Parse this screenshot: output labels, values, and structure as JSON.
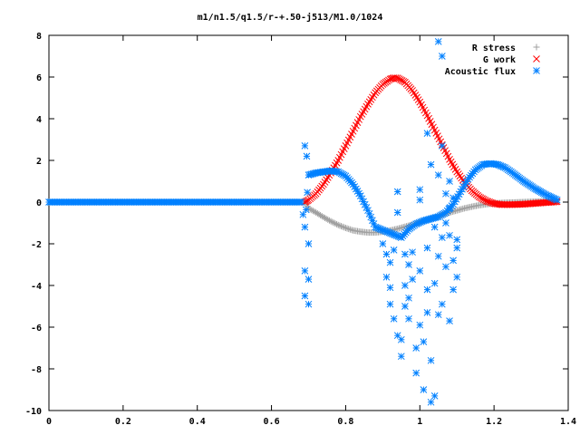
{
  "chart_data": {
    "type": "scatter",
    "title": "m1/n1.5/q1.5/r-+.50-j513/M1.0/1024",
    "xlabel": "",
    "ylabel": "",
    "xlim": [
      0,
      1.4
    ],
    "ylim": [
      -10,
      8
    ],
    "grid": false,
    "legend_position": "top-right",
    "x_ticks": [
      "0",
      "0.2",
      "0.4",
      "0.6",
      "0.8",
      "1",
      "1.2",
      "1.4"
    ],
    "y_ticks": [
      "8",
      "6",
      "4",
      "2",
      "0",
      "-2",
      "-4",
      "-6",
      "-8",
      "-10"
    ],
    "series": [
      {
        "name": "R stress",
        "marker": "plus",
        "color": "#a0a0a0",
        "points": [
          [
            0,
            0
          ],
          [
            0.1,
            0
          ],
          [
            0.2,
            0
          ],
          [
            0.3,
            0
          ],
          [
            0.4,
            0
          ],
          [
            0.5,
            0
          ],
          [
            0.6,
            0
          ],
          [
            0.69,
            0
          ],
          [
            0.7,
            -0.3
          ],
          [
            0.72,
            -0.5
          ],
          [
            0.74,
            -0.72
          ],
          [
            0.76,
            -0.92
          ],
          [
            0.78,
            -1.1
          ],
          [
            0.8,
            -1.24
          ],
          [
            0.82,
            -1.36
          ],
          [
            0.84,
            -1.42
          ],
          [
            0.86,
            -1.46
          ],
          [
            0.88,
            -1.46
          ],
          [
            0.9,
            -1.42
          ],
          [
            0.92,
            -1.36
          ],
          [
            0.94,
            -1.28
          ],
          [
            0.96,
            -1.18
          ],
          [
            0.98,
            -1.08
          ],
          [
            1.0,
            -0.96
          ],
          [
            1.02,
            -0.84
          ],
          [
            1.04,
            -0.74
          ],
          [
            1.06,
            -0.62
          ],
          [
            1.08,
            -0.5
          ],
          [
            1.1,
            -0.4
          ],
          [
            1.12,
            -0.3
          ],
          [
            1.14,
            -0.22
          ],
          [
            1.16,
            -0.15
          ],
          [
            1.18,
            -0.1
          ],
          [
            1.2,
            -0.06
          ],
          [
            1.22,
            -0.04
          ],
          [
            1.25,
            -0.02
          ],
          [
            1.28,
            0
          ],
          [
            1.31,
            0.02
          ],
          [
            1.34,
            0.04
          ],
          [
            1.37,
            0.06
          ]
        ]
      },
      {
        "name": "G work",
        "marker": "cross",
        "color": "#ff0000",
        "points": [
          [
            0.69,
            0
          ],
          [
            0.7,
            0.1
          ],
          [
            0.72,
            0.4
          ],
          [
            0.74,
            0.85
          ],
          [
            0.76,
            1.4
          ],
          [
            0.78,
            2.0
          ],
          [
            0.8,
            2.7
          ],
          [
            0.82,
            3.4
          ],
          [
            0.84,
            4.1
          ],
          [
            0.86,
            4.7
          ],
          [
            0.88,
            5.25
          ],
          [
            0.9,
            5.65
          ],
          [
            0.92,
            5.9
          ],
          [
            0.93,
            5.96
          ],
          [
            0.94,
            5.95
          ],
          [
            0.96,
            5.75
          ],
          [
            0.98,
            5.35
          ],
          [
            1.0,
            4.8
          ],
          [
            1.02,
            4.15
          ],
          [
            1.04,
            3.45
          ],
          [
            1.06,
            2.75
          ],
          [
            1.08,
            2.05
          ],
          [
            1.1,
            1.45
          ],
          [
            1.12,
            0.95
          ],
          [
            1.14,
            0.55
          ],
          [
            1.16,
            0.25
          ],
          [
            1.18,
            0.05
          ],
          [
            1.2,
            -0.07
          ],
          [
            1.22,
            -0.12
          ],
          [
            1.25,
            -0.12
          ],
          [
            1.28,
            -0.1
          ],
          [
            1.31,
            -0.06
          ],
          [
            1.34,
            -0.02
          ],
          [
            1.37,
            0.02
          ]
        ]
      },
      {
        "name": "Acoustic flux",
        "marker": "star",
        "color": "#0080ff",
        "points": [
          [
            0,
            0
          ],
          [
            0.1,
            0
          ],
          [
            0.2,
            0
          ],
          [
            0.3,
            0
          ],
          [
            0.4,
            0
          ],
          [
            0.5,
            0
          ],
          [
            0.6,
            0
          ],
          [
            0.68,
            0
          ],
          [
            0.69,
            2.7
          ],
          [
            0.69,
            -1.2
          ],
          [
            0.69,
            -3.3
          ],
          [
            0.69,
            -4.5
          ],
          [
            0.695,
            2.2
          ],
          [
            0.7,
            -2.0
          ],
          [
            0.7,
            -3.7
          ],
          [
            0.7,
            -4.9
          ],
          [
            0.7,
            1.3
          ],
          [
            0.72,
            1.4
          ],
          [
            0.74,
            1.45
          ],
          [
            0.76,
            1.5
          ],
          [
            0.78,
            1.45
          ],
          [
            0.8,
            1.25
          ],
          [
            0.82,
            0.85
          ],
          [
            0.84,
            0.3
          ],
          [
            0.86,
            -0.4
          ],
          [
            0.88,
            -1.2
          ],
          [
            0.9,
            -2.0
          ],
          [
            0.91,
            -2.5
          ],
          [
            0.92,
            -2.9
          ],
          [
            0.93,
            -2.3
          ],
          [
            0.95,
            -1.7
          ],
          [
            0.97,
            -1.3
          ],
          [
            0.99,
            -1.05
          ],
          [
            1.01,
            -0.9
          ],
          [
            1.03,
            -0.8
          ],
          [
            1.05,
            -0.7
          ],
          [
            1.07,
            -0.5
          ],
          [
            1.09,
            -0.1
          ],
          [
            1.11,
            0.5
          ],
          [
            1.13,
            1.1
          ],
          [
            1.15,
            1.55
          ],
          [
            1.17,
            1.8
          ],
          [
            1.19,
            1.85
          ],
          [
            1.21,
            1.8
          ],
          [
            1.23,
            1.65
          ],
          [
            1.25,
            1.4
          ],
          [
            1.28,
            1.0
          ],
          [
            1.31,
            0.65
          ],
          [
            1.34,
            0.35
          ],
          [
            1.37,
            0.1
          ],
          [
            0.91,
            -3.6
          ],
          [
            0.92,
            -4.1
          ],
          [
            0.92,
            -4.9
          ],
          [
            0.93,
            -5.6
          ],
          [
            0.94,
            0.5
          ],
          [
            0.94,
            -0.5
          ],
          [
            0.94,
            -6.4
          ],
          [
            0.95,
            -6.6
          ],
          [
            0.95,
            -7.4
          ],
          [
            0.96,
            -4.0
          ],
          [
            0.96,
            -5.0
          ],
          [
            0.97,
            -4.6
          ],
          [
            0.97,
            -5.6
          ],
          [
            0.98,
            -3.7
          ],
          [
            0.98,
            -2.4
          ],
          [
            0.99,
            -8.2
          ],
          [
            0.99,
            -7.0
          ],
          [
            1.0,
            -3.3
          ],
          [
            1.0,
            -5.9
          ],
          [
            1.01,
            -6.7
          ],
          [
            1.01,
            -9.0
          ],
          [
            1.02,
            -2.2
          ],
          [
            1.02,
            -4.2
          ],
          [
            1.03,
            -7.6
          ],
          [
            1.03,
            -9.6
          ],
          [
            1.04,
            -9.3
          ],
          [
            1.04,
            -3.9
          ],
          [
            1.05,
            -2.6
          ],
          [
            1.05,
            -5.4
          ],
          [
            1.05,
            1.3
          ],
          [
            1.06,
            -1.7
          ],
          [
            1.06,
            -4.9
          ],
          [
            1.06,
            2.7
          ],
          [
            1.07,
            -3.1
          ],
          [
            1.07,
            0.4
          ],
          [
            1.08,
            -5.7
          ],
          [
            1.08,
            -1.6
          ],
          [
            1.09,
            -2.8
          ],
          [
            1.09,
            -4.2
          ],
          [
            1.1,
            -3.6
          ],
          [
            1.1,
            -2.2
          ],
          [
            1.05,
            7.7
          ],
          [
            1.06,
            7.0
          ],
          [
            1.02,
            3.3
          ],
          [
            1.03,
            1.8
          ],
          [
            1.04,
            -1.2
          ],
          [
            1.0,
            0.6
          ],
          [
            1.0,
            0.1
          ],
          [
            1.08,
            -0.3
          ],
          [
            1.09,
            0.2
          ],
          [
            1.07,
            -1.0
          ],
          [
            1.08,
            1.0
          ],
          [
            1.1,
            -1.8
          ],
          [
            1.02,
            -5.3
          ],
          [
            0.97,
            -3.0
          ],
          [
            0.96,
            -2.5
          ]
        ]
      }
    ]
  }
}
